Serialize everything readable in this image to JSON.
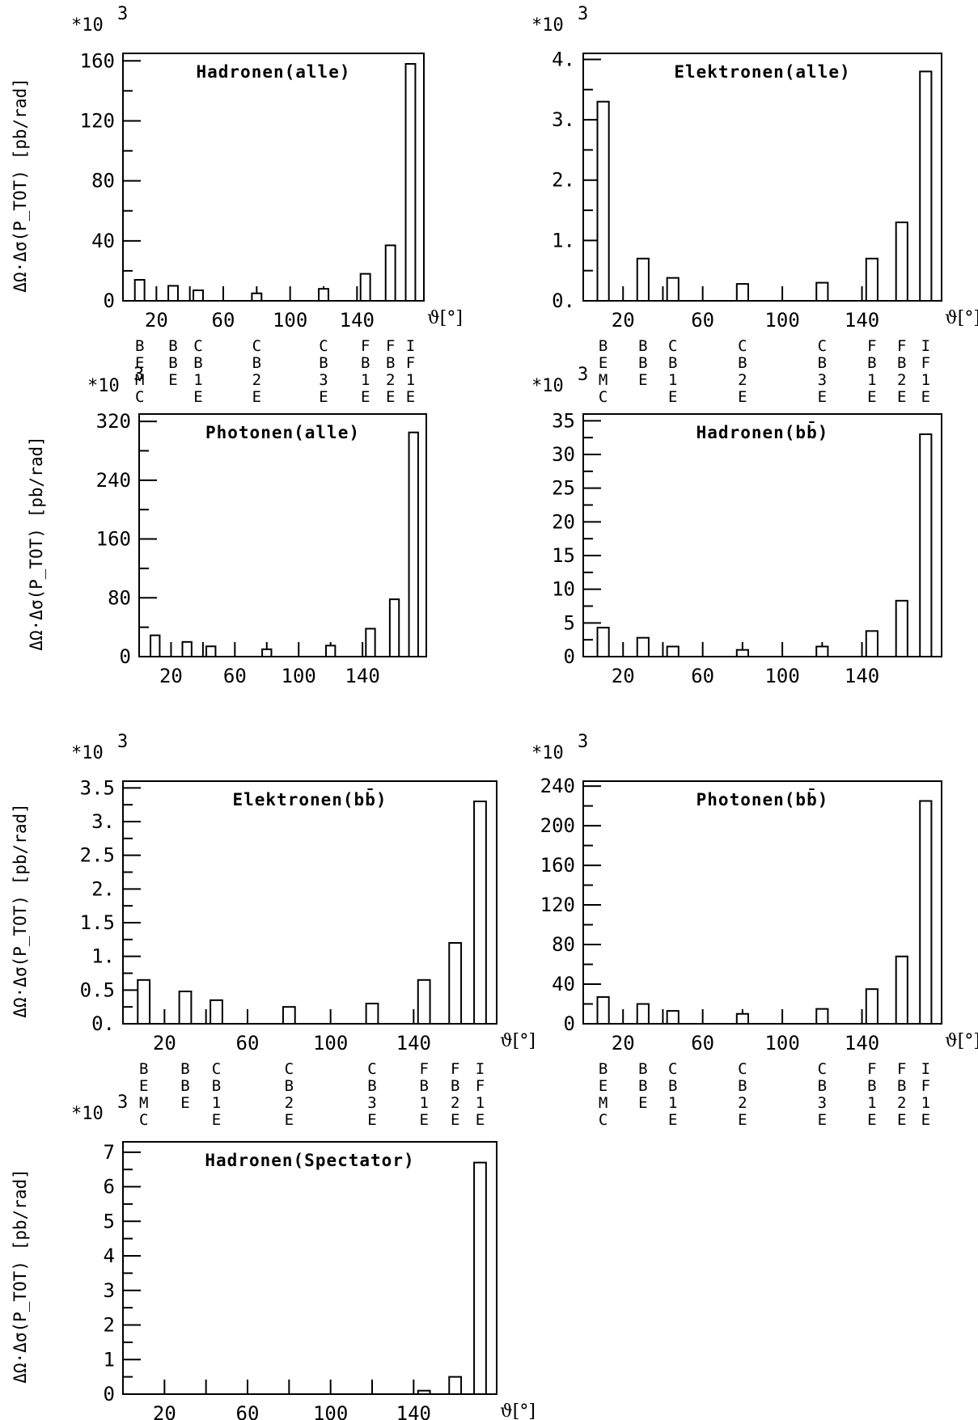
{
  "chart_data": [
    {
      "type": "bar",
      "title": "Hadronen(alle)",
      "multiplier": "*10",
      "multiplier_exp": "3",
      "ylabel": "ΔΩ·Δσ(P_TOT) [pb/rad]",
      "xlabel": "ϑ[°]",
      "yticks": [
        "0",
        "40",
        "80",
        "120",
        "160"
      ],
      "ylim": [
        0,
        165
      ],
      "xticks": [
        "20",
        "60",
        "100",
        "140"
      ],
      "xlim": [
        0,
        180
      ],
      "x": [
        10,
        30,
        45,
        80,
        120,
        145,
        160,
        172
      ],
      "values": [
        14,
        10,
        7,
        5,
        8,
        18,
        37,
        158
      ],
      "detectors": [
        "BEMC",
        "BBE",
        "CB1E",
        "CB2E",
        "CB3E",
        "FB1E",
        "FB2E",
        "IF1E"
      ]
    },
    {
      "type": "bar",
      "title": "Elektronen(alle)",
      "multiplier": "*10",
      "multiplier_exp": "3",
      "ylabel": "",
      "xlabel": "ϑ[°]",
      "yticks": [
        "0.",
        "1.",
        "2.",
        "3.",
        "4."
      ],
      "ylim": [
        0,
        4.1
      ],
      "xticks": [
        "20",
        "60",
        "100",
        "140"
      ],
      "xlim": [
        0,
        180
      ],
      "x": [
        10,
        30,
        45,
        80,
        120,
        145,
        160,
        172
      ],
      "values": [
        3.3,
        0.7,
        0.38,
        0.28,
        0.3,
        0.7,
        1.3,
        3.8
      ],
      "detectors": [
        "BEMC",
        "BBE",
        "CB1E",
        "CB2E",
        "CB3E",
        "FB1E",
        "FB2E",
        "IF1E"
      ]
    },
    {
      "type": "bar",
      "title": "Photonen(alle)",
      "multiplier": "*10",
      "multiplier_exp": "3",
      "ylabel": "ΔΩ·Δσ(P_TOT) [pb/rad]",
      "xlabel": "",
      "yticks": [
        "0",
        "80",
        "160",
        "240",
        "320"
      ],
      "ylim": [
        0,
        330
      ],
      "xticks": [
        "20",
        "60",
        "100",
        "140"
      ],
      "xlim": [
        0,
        180
      ],
      "x": [
        10,
        30,
        45,
        80,
        120,
        145,
        160,
        172
      ],
      "values": [
        29,
        20,
        14,
        10,
        15,
        38,
        78,
        305
      ],
      "detectors": []
    },
    {
      "type": "bar",
      "title": "Hadronen(bb̄)",
      "multiplier": "*10",
      "multiplier_exp": "3",
      "ylabel": "",
      "xlabel": "",
      "yticks": [
        "0",
        "5",
        "10",
        "15",
        "20",
        "25",
        "30",
        "35"
      ],
      "ylim": [
        0,
        36
      ],
      "xticks": [
        "20",
        "60",
        "100",
        "140"
      ],
      "xlim": [
        0,
        180
      ],
      "x": [
        10,
        30,
        45,
        80,
        120,
        145,
        160,
        172
      ],
      "values": [
        4.3,
        2.8,
        1.5,
        1.0,
        1.5,
        3.8,
        8.3,
        33
      ],
      "detectors": []
    },
    {
      "type": "bar",
      "title": "Elektronen(bb̄)",
      "multiplier": "*10",
      "multiplier_exp": "3",
      "ylabel": "ΔΩ·Δσ(P_TOT) [pb/rad]",
      "xlabel": "ϑ[°]",
      "yticks": [
        "0.",
        "0.5",
        "1.",
        "1.5",
        "2.",
        "2.5",
        "3.",
        "3.5"
      ],
      "ylim": [
        0,
        3.6
      ],
      "xticks": [
        "20",
        "60",
        "100",
        "140"
      ],
      "xlim": [
        0,
        180
      ],
      "x": [
        10,
        30,
        45,
        80,
        120,
        145,
        160,
        172
      ],
      "values": [
        0.65,
        0.48,
        0.35,
        0.25,
        0.3,
        0.65,
        1.2,
        3.3
      ],
      "detectors": [
        "BEMC",
        "BBE",
        "CB1E",
        "CB2E",
        "CB3E",
        "FB1E",
        "FB2E",
        "IF1E"
      ]
    },
    {
      "type": "bar",
      "title": "Photonen(bb̄)",
      "multiplier": "*10",
      "multiplier_exp": "3",
      "ylabel": "",
      "xlabel": "ϑ[°]",
      "yticks": [
        "0",
        "40",
        "80",
        "120",
        "160",
        "200",
        "240"
      ],
      "ylim": [
        0,
        245
      ],
      "xticks": [
        "20",
        "60",
        "100",
        "140"
      ],
      "xlim": [
        0,
        180
      ],
      "x": [
        10,
        30,
        45,
        80,
        120,
        145,
        160,
        172
      ],
      "values": [
        27,
        20,
        13,
        10,
        15,
        35,
        68,
        225
      ],
      "detectors": [
        "BEMC",
        "BBE",
        "CB1E",
        "CB2E",
        "CB3E",
        "FB1E",
        "FB2E",
        "IF1E"
      ]
    },
    {
      "type": "bar",
      "title": "Hadronen(Spectator)",
      "multiplier": "*10",
      "multiplier_exp": "3",
      "ylabel": "ΔΩ·Δσ(P_TOT) [pb/rad]",
      "xlabel": "ϑ[°]",
      "yticks": [
        "0",
        "1",
        "2",
        "3",
        "4",
        "5",
        "6",
        "7"
      ],
      "ylim": [
        0,
        7.3
      ],
      "xticks": [
        "20",
        "60",
        "100",
        "140"
      ],
      "xlim": [
        0,
        180
      ],
      "x": [
        145,
        160,
        172
      ],
      "values": [
        0.1,
        0.5,
        6.7
      ],
      "detectors": []
    }
  ]
}
